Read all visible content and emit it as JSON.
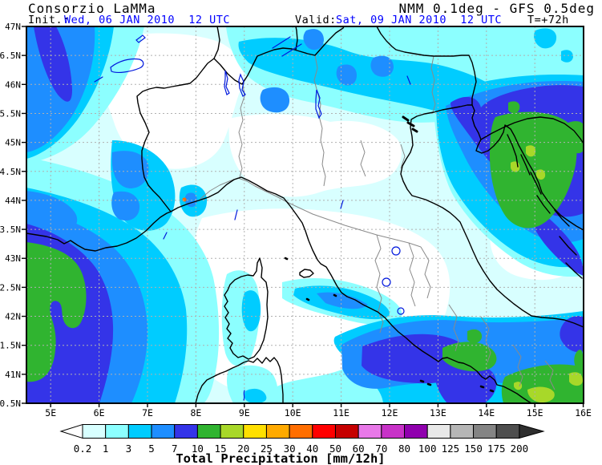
{
  "header": {
    "brand": "Consorzio LaMMa",
    "model": "NMM 0.1deg - GFS 0.5deg",
    "init_label": "Init.:",
    "init_value": "Wed, 06 JAN 2010  12 UTC",
    "valid_label": "Valid:",
    "valid_value": "Sat, 09 JAN 2010  12 UTC",
    "lead_time": "T=+72h"
  },
  "map": {
    "lat_ticks": [
      "47N",
      "46.5N",
      "46N",
      "45.5N",
      "45N",
      "44.5N",
      "44N",
      "43.5N",
      "43N",
      "42.5N",
      "42N",
      "41.5N",
      "41N",
      "40.5N"
    ],
    "lon_ticks": [
      "5E",
      "6E",
      "7E",
      "8E",
      "9E",
      "10E",
      "11E",
      "12E",
      "13E",
      "14E",
      "15E",
      "16E"
    ],
    "grid_color": "#b0b0b0",
    "coast_color": "#000000",
    "region_border_color": "#8a8a8a",
    "water_color": "#0018dd",
    "sea_color": "#ffffff",
    "text_blue": "#0000ff"
  },
  "colorbar": {
    "caption": "Total Precipitation [mm/12h]",
    "tick_values": [
      "0.2",
      "1",
      "3",
      "5",
      "7",
      "10",
      "15",
      "20",
      "25",
      "30",
      "40",
      "50",
      "60",
      "70",
      "80",
      "100",
      "125",
      "150",
      "175",
      "200"
    ],
    "segment_colors": [
      "#d8ffff",
      "#8cffff",
      "#00ccff",
      "#1e8eff",
      "#3434e8",
      "#30b430",
      "#a8d829",
      "#ffe000",
      "#ffaa00",
      "#ff6e00",
      "#ff0000",
      "#c60000",
      "#e878e8",
      "#c832c8",
      "#9000ae",
      "#e8e8e8",
      "#b6b6b6",
      "#848484",
      "#4e4e4e"
    ],
    "under_color": "#ffffff",
    "over_color": "#2e2e2e"
  }
}
